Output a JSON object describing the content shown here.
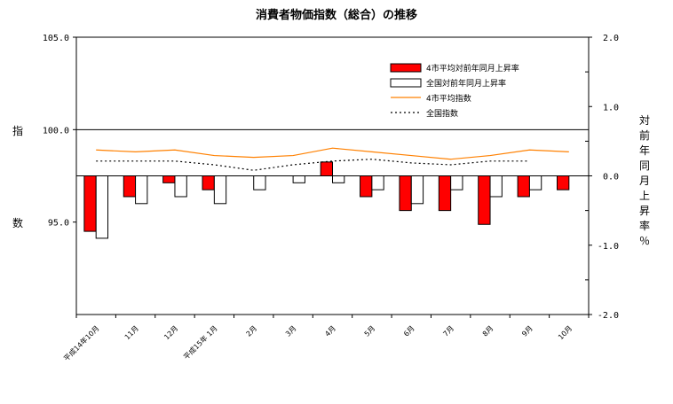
{
  "chart_data": {
    "type": "bar+line",
    "title": "消費者物価指数（総合）の推移",
    "categories": [
      "平成14年10月",
      "11月",
      "12月",
      "平成15年 1月",
      "2月",
      "3月",
      "4月",
      "5月",
      "6月",
      "7月",
      "8月",
      "9月",
      "10月"
    ],
    "left_axis": {
      "label_top": "指",
      "label_bottom": "数",
      "ylim": [
        90,
        105
      ],
      "ticks": [
        "95.0",
        "100.0",
        "105.0"
      ]
    },
    "right_axis": {
      "label": "対前年同月上昇率％",
      "ylim": [
        -2.0,
        2.0
      ],
      "ticks": [
        "-2.0",
        "-1.0",
        "0.0",
        "1.0",
        "2.0"
      ]
    },
    "bar_series": [
      {
        "name": "4市平均対前年同月上昇率",
        "color": "#ff0000",
        "values": [
          -0.8,
          -0.3,
          -0.1,
          -0.2,
          null,
          null,
          0.2,
          -0.3,
          -0.5,
          -0.5,
          -0.7,
          -0.3,
          -0.2
        ]
      },
      {
        "name": "全国対前年同月上昇率",
        "color": "#ffffff",
        "values": [
          -0.9,
          -0.4,
          -0.3,
          -0.4,
          -0.2,
          -0.1,
          -0.1,
          -0.2,
          -0.4,
          -0.2,
          -0.3,
          -0.2,
          null
        ]
      }
    ],
    "line_series": [
      {
        "name": "4市平均指数",
        "color": "#ff8000",
        "style": "solid",
        "values": [
          98.9,
          98.8,
          98.9,
          98.6,
          98.5,
          98.6,
          99.0,
          98.8,
          98.6,
          98.4,
          98.6,
          98.9,
          98.8
        ]
      },
      {
        "name": "全国指数",
        "color": "#000000",
        "style": "dotted",
        "values": [
          98.3,
          98.3,
          98.3,
          98.1,
          97.8,
          98.1,
          98.3,
          98.4,
          98.2,
          98.1,
          98.3,
          98.3,
          null
        ]
      }
    ],
    "legend_position": "top-right"
  }
}
